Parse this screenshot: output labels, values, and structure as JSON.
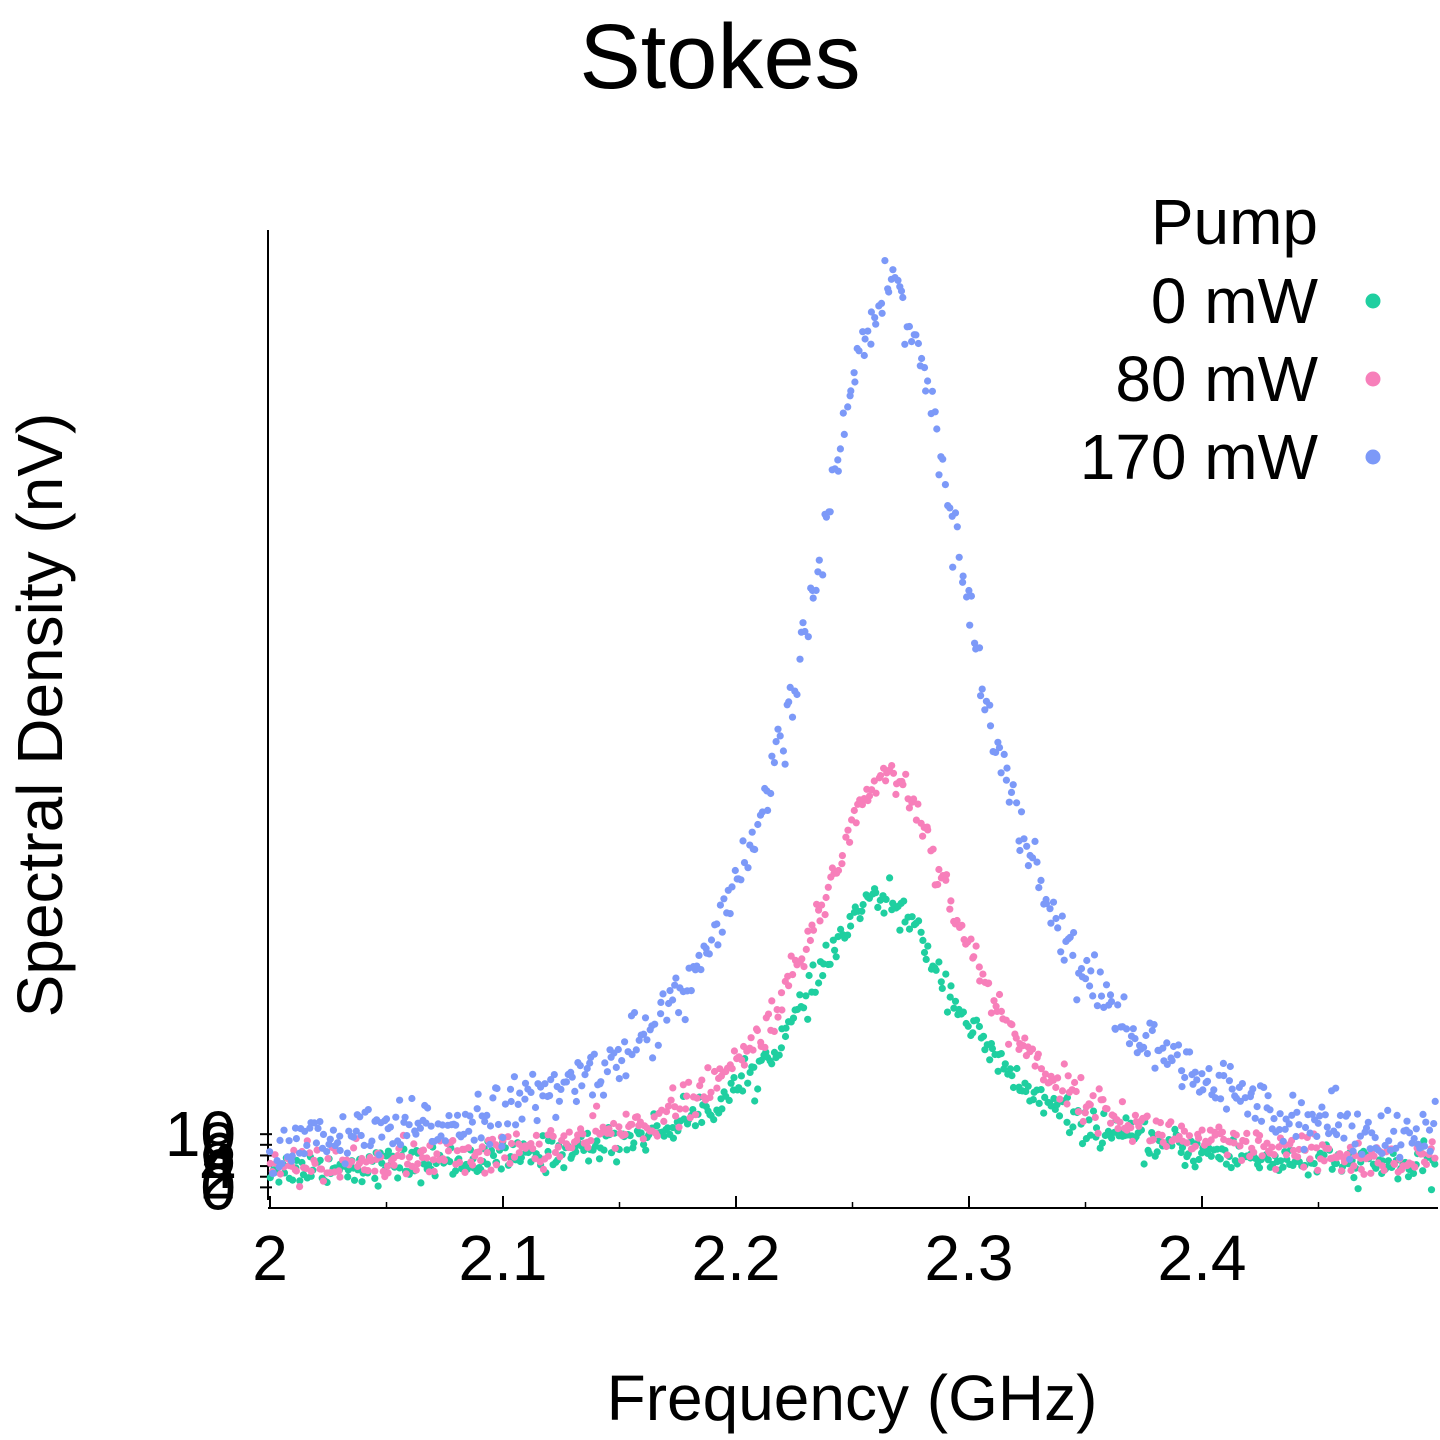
{
  "chart_data": {
    "type": "scatter",
    "title": "Stokes",
    "xlabel": "Frequency (GHz)",
    "ylabel": "Spectral Density (nV)",
    "xlim": [
      2.0,
      2.5
    ],
    "ylim": [
      -2,
      180
    ],
    "x_ticks": [
      2,
      2.1,
      2.2,
      2.3,
      2.4
    ],
    "x_tick_labels": [
      "2",
      "2.1",
      "2.2",
      "2.3",
      "2.4"
    ],
    "y_ticks": [
      0,
      2,
      4,
      6,
      8,
      10
    ],
    "y_tick_labels": [
      "0",
      "2",
      "4",
      "6",
      "8",
      "10"
    ],
    "grid": false,
    "legend": {
      "title": "Pump",
      "placement": "top-right"
    },
    "series": [
      {
        "name": "0 mW",
        "color": "#1fcfa0",
        "model": {
          "baseline": 2.2,
          "amplitude": 52,
          "center": 2.262,
          "hwhm": 0.042,
          "noise": 1.6,
          "n_points": 560
        }
      },
      {
        "name": "80 mW",
        "color": "#f77fba",
        "model": {
          "baseline": 2.6,
          "amplitude": 75,
          "center": 2.265,
          "hwhm": 0.04,
          "noise": 1.8,
          "n_points": 560
        }
      },
      {
        "name": "170 mW",
        "color": "#7c99f8",
        "model": {
          "baseline": 3.2,
          "amplitude": 166,
          "center": 2.266,
          "hwhm": 0.045,
          "noise": 2.6,
          "n_points": 560
        }
      }
    ]
  }
}
